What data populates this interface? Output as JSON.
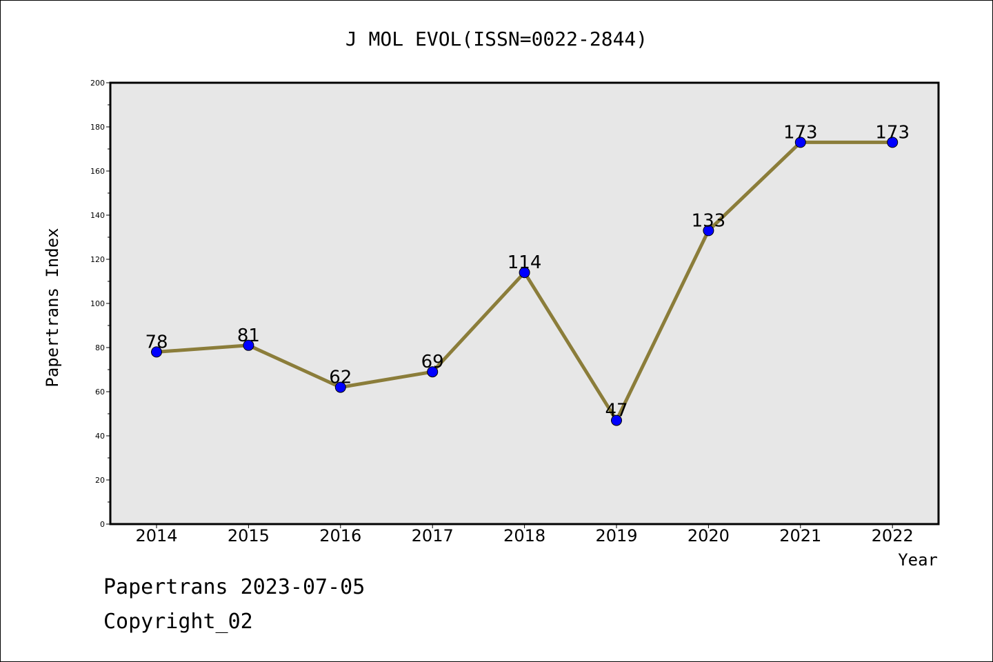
{
  "chart_data": {
    "type": "line",
    "title": "J MOL EVOL(ISSN=0022-2844)",
    "xlabel": "Year",
    "ylabel": "Papertrans Index",
    "categories": [
      "2014",
      "2015",
      "2016",
      "2017",
      "2018",
      "2019",
      "2020",
      "2021",
      "2022"
    ],
    "series": [
      {
        "values": [
          78,
          81,
          62,
          69,
          114,
          47,
          133,
          173,
          173
        ]
      }
    ],
    "data_labels": [
      "78",
      "81",
      "62",
      "69",
      "114",
      "47",
      "133",
      "173",
      "173"
    ],
    "ylim": [
      0,
      200
    ],
    "yticks": [
      0,
      20,
      40,
      60,
      80,
      100,
      120,
      140,
      160,
      180,
      200
    ],
    "ytick_labels": [
      "0",
      "20",
      "40",
      "60",
      "80",
      "100",
      "120",
      "140",
      "160",
      "180",
      "200"
    ],
    "grid": false,
    "line_color": "#8b7d3a",
    "marker_color": "#0000ff",
    "plot_background": "#e7e7e7"
  },
  "footer": {
    "line1": "Papertrans 2023-07-05",
    "line2": "Copyright_02"
  }
}
